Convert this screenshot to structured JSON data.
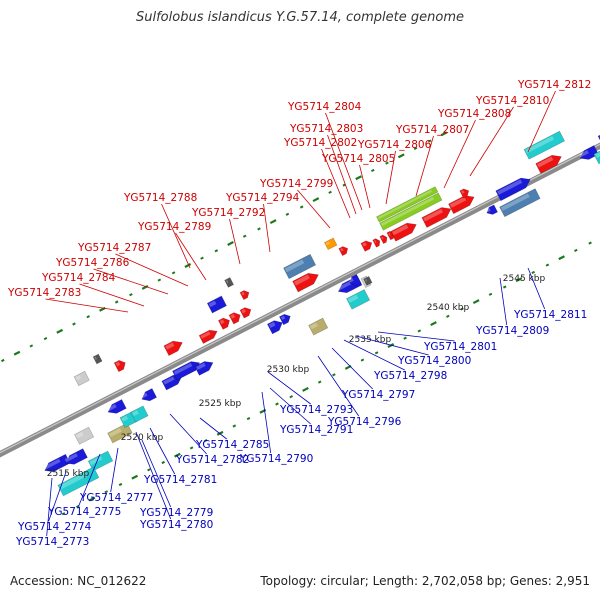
{
  "title": "Sulfolobus islandicus Y.G.57.14, complete genome",
  "footer": {
    "accession": "Accession: NC_012622",
    "topology": "Topology: circular; Length: 2,702,058 bp; Genes: 2,951"
  },
  "colors": {
    "red": "#ee1111",
    "blue": "#1a1ad8",
    "cyan": "#22cccc",
    "steel": "#4d7fb0",
    "khaki": "#b8ad6a",
    "green": "#88cc22",
    "orange": "#ff9900",
    "gray": "#999999",
    "dark": "#555555",
    "light": "#cccccc",
    "label_red": "#cc0000",
    "label_blue": "#0000bb",
    "backbone": "#8a8a8a",
    "tick": "#1a7a1a"
  },
  "scale_labels": [
    "2515 kbp",
    "2520 kbp",
    "2525 kbp",
    "2530 kbp",
    "2535 kbp",
    "2540 kbp",
    "2545 kbp"
  ],
  "scale_positions_kbp": [
    2515,
    2520,
    2525,
    2530,
    2535,
    2540,
    2545
  ],
  "top_labels": [
    "YG5714_2783",
    "YG5714_2784",
    "YG5714_2786",
    "YG5714_2787",
    "YG5714_2789",
    "YG5714_2788",
    "YG5714_2792",
    "YG5714_2794",
    "YG5714_2799",
    "YG5714_2802",
    "YG5714_2803",
    "YG5714_2804",
    "YG5714_2805",
    "YG5714_2806",
    "YG5714_2807",
    "YG5714_2808",
    "YG5714_2810",
    "YG5714_2812"
  ],
  "bottom_labels": [
    "YG5714_2773",
    "YG5714_2774",
    "YG5714_2775",
    "YG5714_2777",
    "YG5714_2779",
    "YG5714_2780",
    "YG5714_2781",
    "YG5714_2782",
    "YG5714_2785",
    "YG5714_2790",
    "YG5714_2791",
    "YG5714_2793",
    "YG5714_2796",
    "YG5714_2797",
    "YG5714_2798",
    "YG5714_2800",
    "YG5714_2801",
    "YG5714_2809",
    "YG5714_2811"
  ]
}
